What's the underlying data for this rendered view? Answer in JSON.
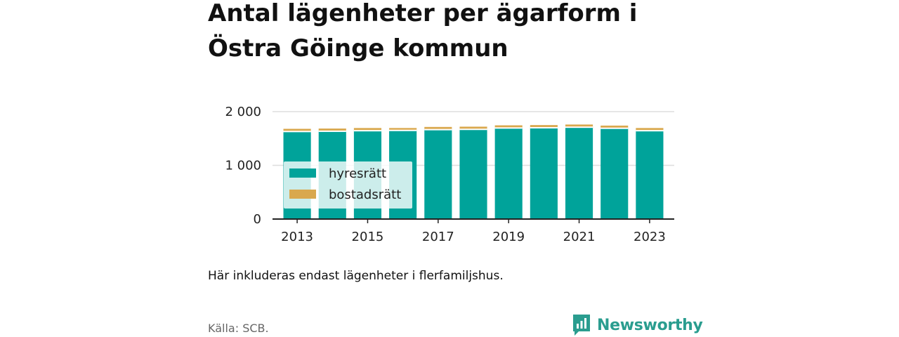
{
  "title": "Antal lägenheter per ägarform i Östra Göinge kommun",
  "note": "Här inkluderas endast lägenheter i flerfamiljshus.",
  "source": "Källa: SCB.",
  "brand": {
    "name": "Newsworthy",
    "color": "#2a9d8f",
    "icon": "newsworthy-logo-icon"
  },
  "chart_data": {
    "type": "bar",
    "stacked": true,
    "categories": [
      "2013",
      "2014",
      "2015",
      "2016",
      "2017",
      "2018",
      "2019",
      "2020",
      "2021",
      "2022",
      "2023"
    ],
    "series": [
      {
        "name": "hyresrätt",
        "color": "#00a39a",
        "values": [
          1630,
          1635,
          1645,
          1650,
          1665,
          1670,
          1695,
          1700,
          1710,
          1690,
          1645
        ]
      },
      {
        "name": "bostadsrätt",
        "color": "#d9a84e",
        "values": [
          50,
          50,
          50,
          45,
          50,
          50,
          50,
          50,
          50,
          50,
          50
        ]
      }
    ],
    "x_tick_labels": [
      "2013",
      "2015",
      "2017",
      "2019",
      "2021",
      "2023"
    ],
    "y_ticks": [
      0,
      1000,
      2000
    ],
    "y_tick_labels": [
      "0",
      "1 000",
      "2 000"
    ],
    "ylim": [
      0,
      2000
    ],
    "grid": true,
    "legend": "bottom-left"
  }
}
